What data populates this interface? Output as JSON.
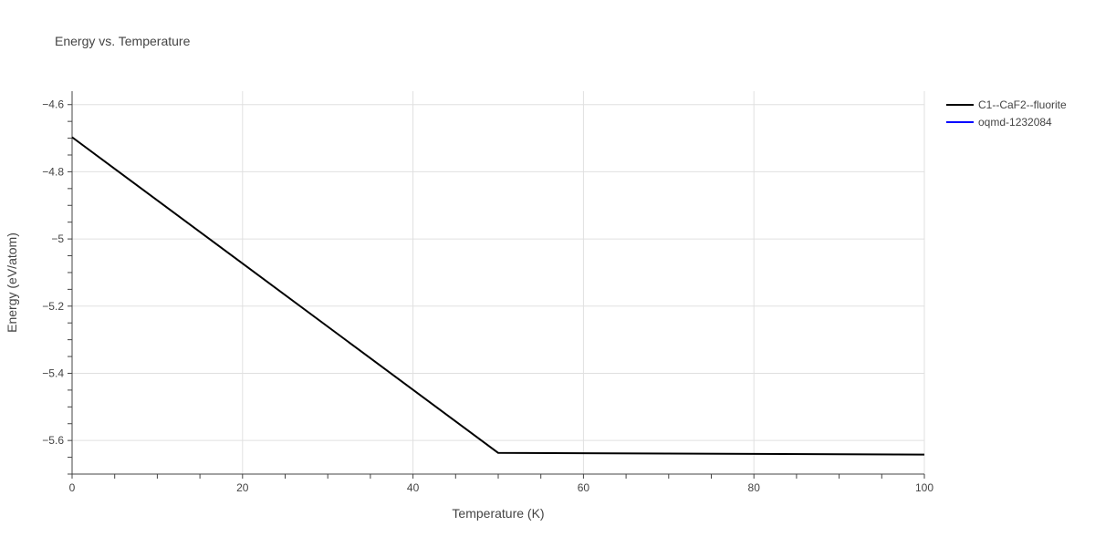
{
  "chart_data": {
    "type": "line",
    "title": "Energy vs. Temperature",
    "xlabel": "Temperature (K)",
    "ylabel": "Energy (eV/atom)",
    "xlim": [
      0,
      100
    ],
    "ylim": [
      -5.7,
      -4.56
    ],
    "x_ticks": [
      0,
      20,
      40,
      60,
      80,
      100
    ],
    "x_tick_labels": [
      "0",
      "20",
      "40",
      "60",
      "80",
      "100"
    ],
    "y_ticks": [
      -4.6,
      -4.8,
      -5.0,
      -5.2,
      -5.4,
      -5.6
    ],
    "y_tick_labels": [
      "−4.6",
      "−4.8",
      "−5",
      "−5.2",
      "−5.4",
      "−5.6"
    ],
    "grid": true,
    "legend_position": "top-right",
    "series": [
      {
        "name": "C1--CaF2--fluorite",
        "color": "#000000",
        "x": [
          0,
          50,
          100
        ],
        "y": [
          -4.697,
          -5.637,
          -5.642
        ]
      },
      {
        "name": "oqmd-1232084",
        "color": "#0000ff",
        "x": [],
        "y": []
      }
    ]
  }
}
